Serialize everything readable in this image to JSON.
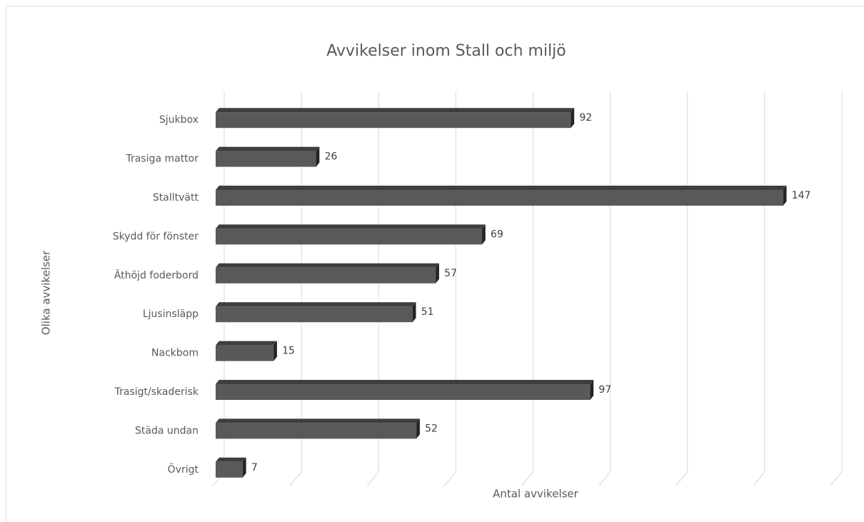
{
  "chart_data": {
    "type": "bar",
    "orientation": "horizontal",
    "title": "Avvikelser inom Stall och miljö",
    "xlabel": "Antal avvikelser",
    "ylabel": "Olika avvikelser",
    "categories": [
      "Sjukbox",
      "Trasiga mattor",
      "Stalltvätt",
      "Skydd för fönster",
      "Äthöjd foderbord",
      "Ljusinsläpp",
      "Nackbom",
      "Trasigt/skaderisk",
      "Städa undan",
      "Övrigt"
    ],
    "values": [
      92,
      26,
      147,
      69,
      57,
      51,
      15,
      97,
      52,
      7
    ],
    "color": "#595959",
    "xlim": [
      0,
      160
    ],
    "xticks": [
      0,
      20,
      40,
      60,
      80,
      100,
      120,
      140,
      160
    ],
    "grid": true
  }
}
